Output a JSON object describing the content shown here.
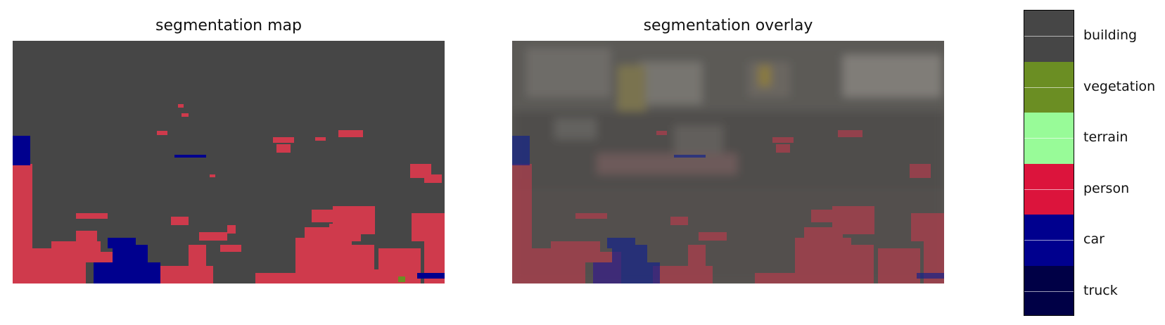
{
  "panels": {
    "map_title": "segmentation map",
    "overlay_title": "segmentation overlay"
  },
  "colorbar": {
    "classes": [
      {
        "label": "building",
        "color": "#464646"
      },
      {
        "label": "vegetation",
        "color": "#6b8e23"
      },
      {
        "label": "terrain",
        "color": "#98fb98"
      },
      {
        "label": "person",
        "color": "#dc143c"
      },
      {
        "label": "car",
        "color": "#00008e"
      },
      {
        "label": "truck",
        "color": "#000046"
      }
    ]
  }
}
